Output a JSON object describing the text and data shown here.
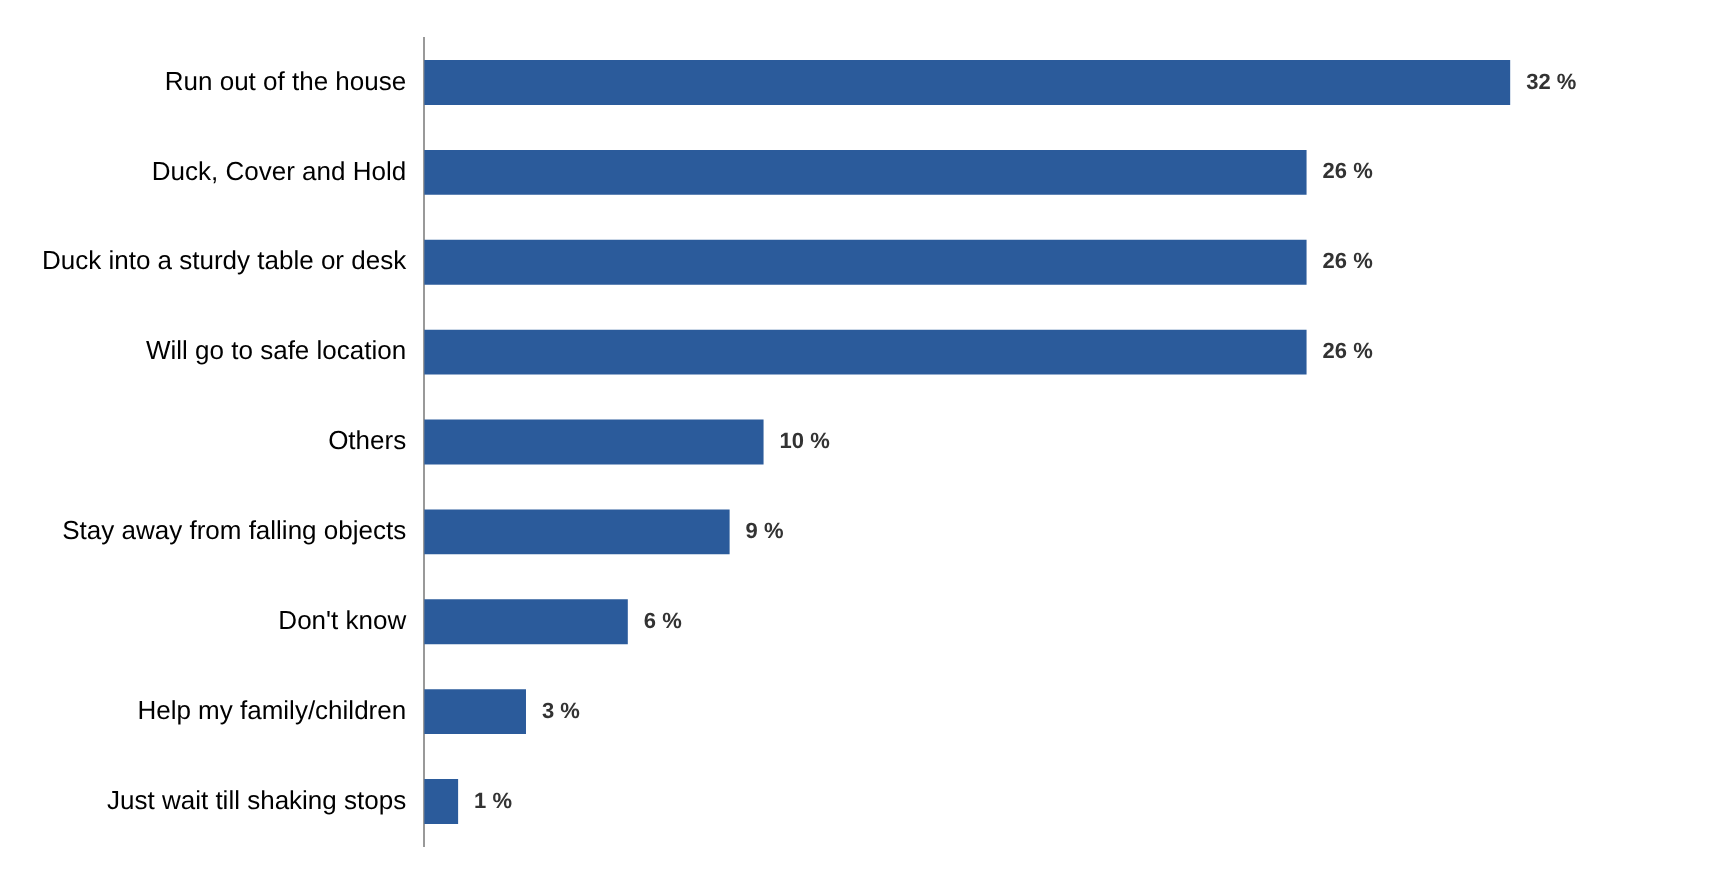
{
  "chart_data": {
    "type": "bar",
    "orientation": "horizontal",
    "categories": [
      "Run out of the house",
      "Duck, Cover and Hold",
      "Duck into a sturdy table or desk",
      "Will go to safe location",
      "Others",
      "Stay away from falling objects",
      "Don't know",
      "Help my family/children",
      "Just wait till shaking stops"
    ],
    "values": [
      32,
      26,
      26,
      26,
      10,
      9,
      6,
      3,
      1
    ],
    "value_labels": [
      "32 %",
      "26 %",
      "26 %",
      "26 %",
      "10 %",
      "9 %",
      "6 %",
      "3 %",
      "1 %"
    ],
    "color": "#2b5b9b",
    "tick_labels": "y",
    "grid": false,
    "legend": false
  }
}
